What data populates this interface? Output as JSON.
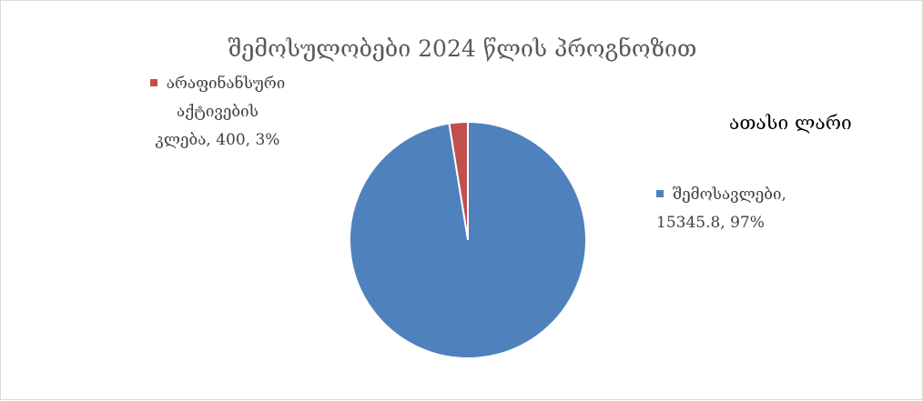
{
  "chart_data": {
    "type": "pie",
    "title": "შემოსულობები 2024 წლის პროგნოზით",
    "unit_label": "ათასი ლარი",
    "slices": [
      {
        "name": "შემოსავლები",
        "value": 15345.8,
        "percent": "97%",
        "color": "#4f81bd",
        "label_lines": [
          "შემოსავლები,",
          "15345.8, 97%"
        ]
      },
      {
        "name": "არაფინანსური აქტივების კლება",
        "value": 400,
        "percent": "3%",
        "color": "#c0504d",
        "label_lines": [
          "არაფინანსური",
          "აქტივების",
          "კლება, 400, 3%"
        ]
      }
    ],
    "legend": "none",
    "data_labels": "category, value, percentage"
  }
}
